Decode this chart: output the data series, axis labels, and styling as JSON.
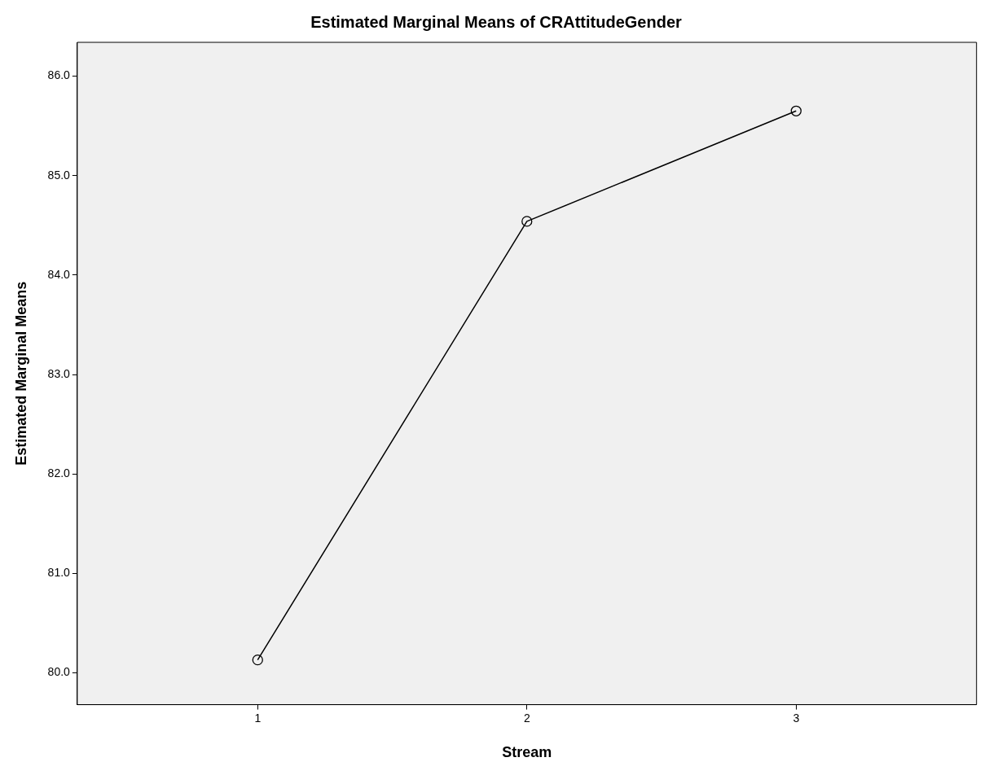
{
  "chart_data": {
    "type": "line",
    "title": "Estimated Marginal Means of CRAttitudeGender",
    "xlabel": "Stream",
    "ylabel": "Estimated Marginal Means",
    "categories": [
      "1",
      "2",
      "3"
    ],
    "series": [
      {
        "color": "#000000",
        "values": [
          80.13,
          84.54,
          85.65
        ]
      }
    ],
    "ylim": [
      79.68,
      86.34
    ],
    "yticks": [
      {
        "value": 80,
        "label": "80.0"
      },
      {
        "value": 81,
        "label": "81.0"
      },
      {
        "value": 82,
        "label": "82.0"
      },
      {
        "value": 83,
        "label": "83.0"
      },
      {
        "value": 84,
        "label": "84.0"
      },
      {
        "value": 85,
        "label": "85.0"
      },
      {
        "value": 86,
        "label": "86.0"
      }
    ],
    "grid": false,
    "legend": false,
    "marker": "circle",
    "line_style": "solid"
  }
}
